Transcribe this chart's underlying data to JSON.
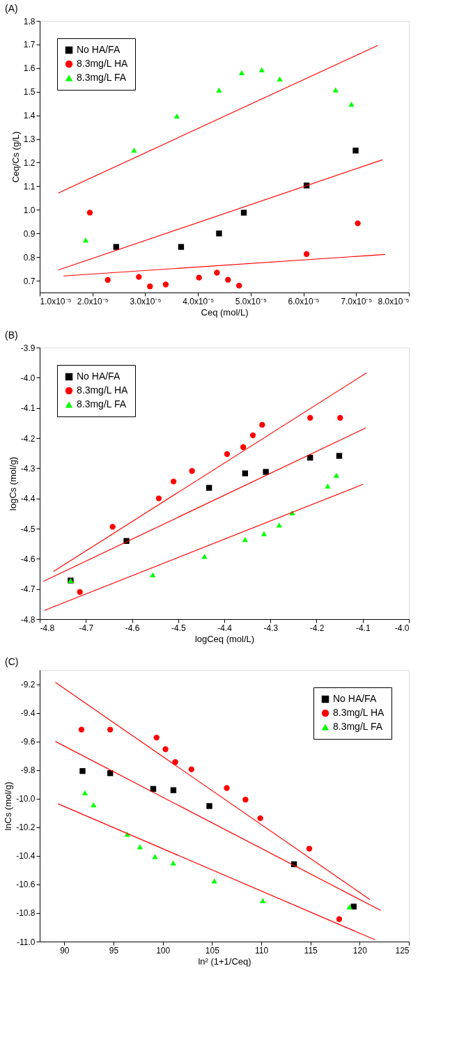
{
  "chart_data": [
    {
      "type": "scatter",
      "title": "(A)",
      "xlabel": "Ceq (mol/L)",
      "ylabel": "Ceq/Cs (g/L)",
      "legend": "top left",
      "grid": false,
      "xlim": [
        1e-05,
        8e-05
      ],
      "ylim": [
        0.65,
        1.8
      ],
      "xticks": [
        {
          "value": 1e-05,
          "label": "1.0x10⁻⁵"
        },
        {
          "value": 2e-05,
          "label": "2.0x10⁻⁵"
        },
        {
          "value": 3e-05,
          "label": "3.0x10⁻⁵"
        },
        {
          "value": 4e-05,
          "label": "4.0x10⁻⁵"
        },
        {
          "value": 5e-05,
          "label": "5.0x10⁻⁵"
        },
        {
          "value": 6e-05,
          "label": "6.0x10⁻⁵"
        },
        {
          "value": 7e-05,
          "label": "7.0x10⁻⁵"
        },
        {
          "value": 8e-05,
          "label": "8.0x10⁻⁵"
        }
      ],
      "yticks": [
        0.7,
        0.8,
        0.9,
        {
          "value": 1,
          "label": "1.0"
        },
        1.1,
        1.2,
        1.3,
        1.4,
        1.5,
        1.6,
        1.7,
        1.8
      ],
      "series": [
        {
          "name": "No HA/FA",
          "marker": "square",
          "color": "#000000",
          "x": [
            2.45e-05,
            3.68e-05,
            4.4e-05,
            4.87e-05,
            6.06e-05,
            6.99e-05
          ],
          "values": [
            0.843,
            0.843,
            0.9,
            0.988,
            1.103,
            1.251
          ]
        },
        {
          "name": "8.3mg/L HA",
          "marker": "circle",
          "color": "#ff0000",
          "x": [
            1.95e-05,
            2.29e-05,
            2.88e-05,
            3.09e-05,
            3.39e-05,
            4.02e-05,
            4.36e-05,
            4.57e-05,
            4.78e-05,
            6.06e-05,
            7.03e-05
          ],
          "values": [
            0.988,
            0.703,
            0.716,
            0.676,
            0.684,
            0.713,
            0.734,
            0.704,
            0.679,
            0.813,
            0.943
          ]
        },
        {
          "name": "8.3mg/L FA",
          "marker": "triangle",
          "color": "#00ff00",
          "x": [
            1.87e-05,
            2.79e-05,
            3.6e-05,
            4.4e-05,
            4.83e-05,
            5.21e-05,
            5.55e-05,
            6.61e-05,
            6.91e-05
          ],
          "values": [
            0.872,
            1.253,
            1.397,
            1.507,
            1.581,
            1.593,
            1.554,
            1.508,
            1.447
          ]
        },
        {
          "type": "line",
          "color": "#ff0000",
          "x": [
            1.35e-05,
            7.41e-05
          ],
          "values": [
            1.071,
            1.696
          ]
        },
        {
          "type": "line",
          "color": "#ff0000",
          "x": [
            1.35e-05,
            7.5e-05
          ],
          "values": [
            0.745,
            1.212
          ]
        },
        {
          "type": "line",
          "color": "#ff0000",
          "x": [
            1.45e-05,
            7.55e-05
          ],
          "values": [
            0.72,
            0.811
          ]
        }
      ]
    },
    {
      "type": "scatter",
      "title": "(B)",
      "xlabel": "logCeq (mol/L)",
      "ylabel": "logCs (mol/g)",
      "legend": "top left",
      "grid": false,
      "xlim": [
        -4.8,
        -4.0
      ],
      "ylim": [
        -4.8,
        -3.9
      ],
      "xticks": [
        -4.8,
        -4.7,
        -4.6,
        -4.5,
        -4.4,
        -4.3,
        -4.2,
        -4.1,
        {
          "value": -4,
          "label": "-4.0"
        }
      ],
      "yticks": [
        -4.8,
        -4.7,
        -4.6,
        -4.5,
        -4.4,
        -4.3,
        -4.2,
        -4.1,
        {
          "value": -4,
          "label": "-4.0"
        },
        -3.9
      ],
      "series": [
        {
          "name": "No HA/FA",
          "marker": "square",
          "color": "#000000",
          "x": [
            -4.733,
            -4.612,
            -4.433,
            -4.355,
            -4.31,
            -4.214,
            -4.151
          ],
          "values": [
            -4.672,
            -4.541,
            -4.365,
            -4.317,
            -4.312,
            -4.265,
            -4.259
          ]
        },
        {
          "name": "8.3mg/L HA",
          "marker": "circle",
          "color": "#ff0000",
          "x": [
            -4.713,
            -4.642,
            -4.542,
            -4.51,
            -4.47,
            -4.394,
            -4.359,
            -4.338,
            -4.318,
            -4.214,
            -4.149
          ],
          "values": [
            -4.71,
            -4.494,
            -4.4,
            -4.344,
            -4.309,
            -4.253,
            -4.23,
            -4.191,
            -4.156,
            -4.133,
            -4.133
          ]
        },
        {
          "name": "8.3mg/L FA",
          "marker": "triangle",
          "color": "#00ff00",
          "x": [
            -4.733,
            -4.555,
            -4.443,
            -4.355,
            -4.314,
            -4.281,
            -4.253,
            -4.176,
            -4.157
          ],
          "values": [
            -4.672,
            -4.653,
            -4.592,
            -4.536,
            -4.517,
            -4.488,
            -4.448,
            -4.359,
            -4.323
          ]
        },
        {
          "type": "line",
          "color": "#ff0000",
          "x": [
            -4.77,
            -4.092
          ],
          "values": [
            -4.642,
            -3.984
          ]
        },
        {
          "type": "line",
          "color": "#ff0000",
          "x": [
            -4.792,
            -4.093
          ],
          "values": [
            -4.675,
            -4.166
          ]
        },
        {
          "type": "line",
          "color": "#ff0000",
          "x": [
            -4.79,
            -4.099
          ],
          "values": [
            -4.771,
            -4.353
          ]
        }
      ]
    },
    {
      "type": "scatter",
      "title": "(C)",
      "xlabel": "ln² (1+1/Ceq)",
      "ylabel": "lnCs (mol/g)",
      "legend": "top right",
      "grid": false,
      "xlim": [
        87.5,
        125
      ],
      "ylim": [
        -11.0,
        -9.1
      ],
      "xticks": [
        90,
        95,
        100,
        105,
        110,
        115,
        120,
        125
      ],
      "yticks": [
        {
          "value": -11,
          "label": "-11.0"
        },
        -10.8,
        -10.6,
        -10.4,
        -10.2,
        {
          "value": -10,
          "label": "-10.0"
        },
        -9.8,
        -9.6,
        -9.4,
        -9.2
      ],
      "series": [
        {
          "name": "No HA/FA",
          "marker": "square",
          "color": "#000000",
          "x": [
            91.85,
            94.66,
            99.03,
            101.08,
            104.73,
            113.33,
            119.39
          ],
          "values": [
            -9.807,
            -9.822,
            -9.932,
            -9.941,
            -10.052,
            -10.459,
            -10.755
          ]
        },
        {
          "name": "8.3mg/L HA",
          "marker": "circle",
          "color": "#ff0000",
          "x": [
            91.74,
            94.66,
            99.37,
            100.28,
            101.27,
            102.91,
            106.5,
            108.4,
            109.9,
            114.88,
            117.92
          ],
          "values": [
            -9.517,
            -9.517,
            -9.573,
            -9.654,
            -9.744,
            -9.795,
            -9.926,
            -10.007,
            -10.137,
            -10.35,
            -10.843
          ]
        },
        {
          "name": "8.3mg/L FA",
          "marker": "triangle",
          "color": "#00ff00",
          "x": [
            92.09,
            92.97,
            96.4,
            97.68,
            99.21,
            101.06,
            105.24,
            110.16,
            118.96
          ],
          "values": [
            -9.959,
            -10.043,
            -10.249,
            -10.337,
            -10.405,
            -10.45,
            -10.575,
            -10.713,
            -10.757
          ]
        },
        {
          "type": "line",
          "color": "#ff0000",
          "x": [
            89.09,
            121.04
          ],
          "values": [
            -9.187,
            -10.706
          ]
        },
        {
          "type": "line",
          "color": "#ff0000",
          "x": [
            89.09,
            122.14
          ],
          "values": [
            -9.6,
            -10.782
          ]
        },
        {
          "type": "line",
          "color": "#ff0000",
          "x": [
            89.36,
            121.58
          ],
          "values": [
            -10.036,
            -10.988
          ]
        }
      ]
    }
  ]
}
